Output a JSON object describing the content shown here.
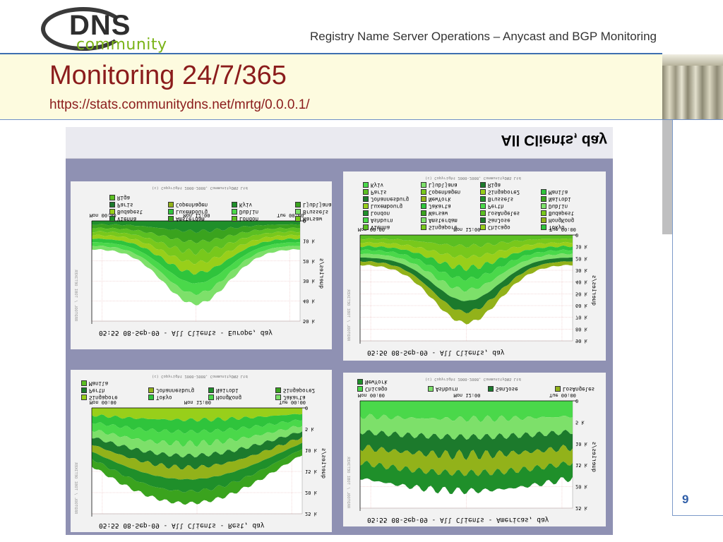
{
  "header": {
    "logo_dns": "DNS",
    "logo_community": "community",
    "title": "Registry Name Server Operations – Anycast and BGP Monitoring"
  },
  "slide": {
    "title": "Monitoring 24/7/365",
    "url": "https://stats.communitydns.net/mrtg/0.0.0.1/",
    "page_number": "9"
  },
  "screenshot": {
    "heading": "All Clients, day",
    "copyright": "(c) Copyright 2000-2008, CommunityDNS Ltd",
    "side_label": "RRDTOOL / TOBI OETIKER",
    "charts": [
      {
        "title": "05:55 08-Sep-09 - All Clients - Europe, day",
        "ylabel": "queries/s",
        "yticks": [
          "0",
          "10 k",
          "20 k",
          "30 k",
          "40 k",
          "50 k"
        ],
        "xticks": [
          "Mon 00:00",
          "Mon 12:00",
          "Tue 00:00"
        ],
        "legend": [
          "Vienna",
          "Amsterdam",
          "London",
          "Warsaw",
          "Budapest",
          "Luxembourg",
          "Dublin",
          "Brussels",
          "Paris",
          "Copenhagen",
          "Kyiv",
          "Ljubljana",
          "Riga"
        ]
      },
      {
        "title": "05:56 08-Sep-09 - All Clients, day",
        "ylabel": "queries/s",
        "yticks": [
          "0",
          "10 k",
          "20 k",
          "30 k",
          "40 k",
          "50 k",
          "60 k",
          "70 k",
          "80 k",
          "90 k"
        ],
        "xticks": [
          "Mon 00:00",
          "Mon 12:00",
          "Tue 00:00"
        ],
        "legend": [
          "Vienna",
          "Singapore",
          "Chicago",
          "Tokyo",
          "Ashburn",
          "Amsterdam",
          "SanJose",
          "HongKong",
          "London",
          "Warsaw",
          "LosAngeles",
          "Budapest",
          "Luxembourg",
          "Jakarta",
          "Perth",
          "Dublin",
          "Johannesburg",
          "NewYork",
          "Brussels",
          "Nairobi",
          "Paris",
          "Copenhagen",
          "Singapore2",
          "Manila",
          "Kyiv",
          "Ljubljana",
          "Riga"
        ]
      },
      {
        "title": "05:55 08-Sep-09 - All Clients - Rest, day",
        "ylabel": "queries/s",
        "yticks": [
          "0",
          "5 k",
          "10 k",
          "15 k",
          "20 k",
          "25 k"
        ],
        "xticks": [
          "Mon 00:00",
          "Mon 12:00",
          "Tue 00:00"
        ],
        "legend": [
          "Singapore",
          "Tokyo",
          "HongKong",
          "Jakarta",
          "Perth",
          "Johannesburg",
          "Nairobi",
          "Singapore2",
          "Manila"
        ]
      },
      {
        "title": "05:55 08-Sep-09 - All Clients - Americas, day",
        "ylabel": "queries/s",
        "yticks": [
          "0",
          "5 k",
          "10 k",
          "15 k",
          "20 k",
          "25 k"
        ],
        "xticks": [
          "Mon 00:00",
          "Mon 12:00",
          "Tue 00:00"
        ],
        "legend": [
          "Chicago",
          "Ashburn",
          "SanJose",
          "LosAngeles",
          "NewYork"
        ]
      }
    ]
  },
  "colors": {
    "accent_title": "#8b1c1c",
    "header_rule": "#3d6fb0",
    "logo_green": "#7ab317",
    "page_number": "#2f5ea8"
  }
}
